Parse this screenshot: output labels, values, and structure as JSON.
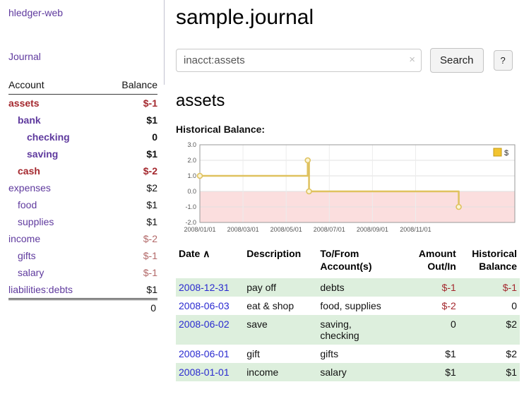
{
  "palette": {
    "purple": "#5f3a9e",
    "dark_red": "#a4282e",
    "soft_red": "#b26868",
    "link_blue": "#2a2ad0",
    "row_green": "#ddefdd"
  },
  "sidebar": {
    "app_title": "hledger-web",
    "journal_label": "Journal",
    "accounts": {
      "header_account": "Account",
      "header_balance": "Balance",
      "rows": [
        {
          "name": "assets",
          "balance": "$-1",
          "indent": 0,
          "bold": true,
          "name_style": "red",
          "balance_style": "red"
        },
        {
          "name": "bank",
          "balance": "$1",
          "indent": 1,
          "bold": true,
          "name_style": "purple",
          "balance_style": "black"
        },
        {
          "name": "checking",
          "balance": "0",
          "indent": 2,
          "bold": true,
          "name_style": "purple",
          "balance_style": "black"
        },
        {
          "name": "saving",
          "balance": "$1",
          "indent": 2,
          "bold": true,
          "name_style": "purple",
          "balance_style": "black"
        },
        {
          "name": "cash",
          "balance": "$-2",
          "indent": 1,
          "bold": true,
          "name_style": "red",
          "balance_style": "red"
        },
        {
          "name": "expenses",
          "balance": "$2",
          "indent": 0,
          "bold": false,
          "name_style": "purple",
          "balance_style": "black"
        },
        {
          "name": "food",
          "balance": "$1",
          "indent": 1,
          "bold": false,
          "name_style": "purple",
          "balance_style": "black"
        },
        {
          "name": "supplies",
          "balance": "$1",
          "indent": 1,
          "bold": false,
          "name_style": "purple",
          "balance_style": "black"
        },
        {
          "name": "income",
          "balance": "$-2",
          "indent": 0,
          "bold": false,
          "name_style": "purple",
          "balance_style": "softred"
        },
        {
          "name": "gifts",
          "balance": "$-1",
          "indent": 1,
          "bold": false,
          "name_style": "purple",
          "balance_style": "softred"
        },
        {
          "name": "salary",
          "balance": "$-1",
          "indent": 1,
          "bold": false,
          "name_style": "purple",
          "balance_style": "softred"
        },
        {
          "name": "liabilities:debts",
          "balance": "$1",
          "indent": 0,
          "bold": false,
          "name_style": "purple",
          "balance_style": "black"
        }
      ],
      "total": "0"
    }
  },
  "main": {
    "title": "sample.journal",
    "search": {
      "value": "inacct:assets",
      "clear_icon": "×",
      "button_label": "Search",
      "help_label": "?"
    },
    "section_title": "assets",
    "chart_label": "Historical Balance:",
    "register": {
      "headers": [
        {
          "line1": "Date",
          "sort": "∧"
        },
        {
          "line1": "Description"
        },
        {
          "line1": "To/From",
          "line2": "Account(s)"
        },
        {
          "line1": "Amount",
          "line2": "Out/In"
        },
        {
          "line1": "Historical",
          "line2": "Balance"
        }
      ],
      "rows": [
        {
          "date": "2008-12-31",
          "description": "pay off",
          "accounts": "debts",
          "amount": "$-1",
          "balance": "$-1",
          "amount_neg": true,
          "balance_neg": true,
          "shaded": true
        },
        {
          "date": "2008-06-03",
          "description": "eat & shop",
          "accounts": "food, supplies",
          "amount": "$-2",
          "balance": "0",
          "amount_neg": true,
          "balance_neg": false,
          "shaded": false
        },
        {
          "date": "2008-06-02",
          "description": "save",
          "accounts": "saving,\nchecking",
          "amount": "0",
          "balance": "$2",
          "amount_neg": false,
          "balance_neg": false,
          "shaded": true
        },
        {
          "date": "2008-06-01",
          "description": "gift",
          "accounts": "gifts",
          "amount": "$1",
          "balance": "$2",
          "amount_neg": false,
          "balance_neg": false,
          "shaded": false
        },
        {
          "date": "2008-01-01",
          "description": "income",
          "accounts": "salary",
          "amount": "$1",
          "balance": "$1",
          "amount_neg": false,
          "balance_neg": false,
          "shaded": true
        }
      ]
    }
  },
  "chart_data": {
    "type": "line",
    "title": "Historical Balance:",
    "ylim": [
      -2,
      3
    ],
    "y_ticks": [
      3,
      2,
      1,
      0,
      -1,
      -2
    ],
    "xlim_months": [
      0,
      14.6
    ],
    "x_ticks": [
      {
        "month": 0,
        "label": "2008/01/01"
      },
      {
        "month": 2,
        "label": "2008/03/01"
      },
      {
        "month": 4,
        "label": "2008/05/01"
      },
      {
        "month": 6,
        "label": "2008/07/01"
      },
      {
        "month": 8,
        "label": "2008/09/01"
      },
      {
        "month": 10,
        "label": "2008/11/01"
      }
    ],
    "series": [
      {
        "name": "$",
        "step_points": [
          [
            0,
            1
          ],
          [
            5,
            1
          ],
          [
            5,
            2
          ],
          [
            5.06,
            2
          ],
          [
            5.06,
            0
          ],
          [
            12,
            0
          ],
          [
            12,
            -1
          ]
        ],
        "markers": [
          [
            0,
            1
          ],
          [
            5,
            2
          ],
          [
            5.06,
            0
          ],
          [
            12,
            -1
          ]
        ]
      }
    ],
    "legend": {
      "label": "$",
      "position": "top-right",
      "swatch_color": "#f2c430"
    },
    "line_color": "#dfc25f",
    "negative_region_color": "#fbdede",
    "grid": true
  }
}
